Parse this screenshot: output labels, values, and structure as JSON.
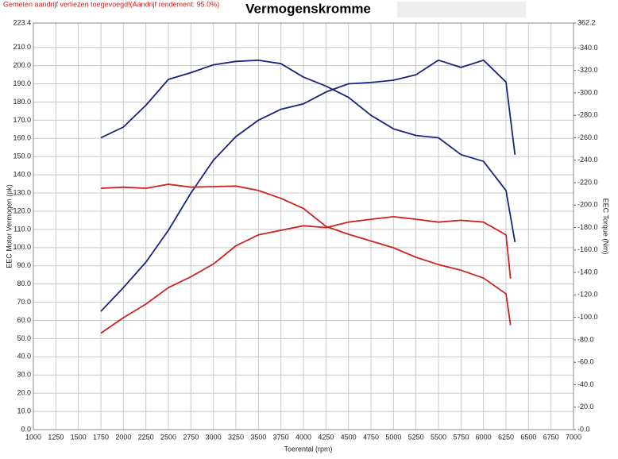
{
  "chart_data": {
    "type": "line",
    "title": "Vermogenskromme",
    "note": "Gemeten aandrijf verliezen toegevoegd!(Aandrijf rendement: 95.0%)",
    "xlabel": "Toerental (rpm)",
    "ylabel": "EEC Motor Vermogen (pk)",
    "y2label": "EEC Torque (Nm)",
    "xlim": [
      1000,
      7000
    ],
    "xticks": [
      1000,
      1250,
      1500,
      1750,
      2000,
      2250,
      2500,
      2750,
      3000,
      3250,
      3500,
      3750,
      4000,
      4250,
      4500,
      4750,
      5000,
      5250,
      5500,
      5750,
      6000,
      6250,
      6500,
      6750,
      7000
    ],
    "ylim": [
      0,
      223.4
    ],
    "yticks": [
      {
        "value": 0,
        "label": "0.0"
      },
      {
        "value": 10,
        "label": "10.0"
      },
      {
        "value": 20,
        "label": "20.0"
      },
      {
        "value": 30,
        "label": "30.0"
      },
      {
        "value": 40,
        "label": "40.0"
      },
      {
        "value": 50,
        "label": "50.0"
      },
      {
        "value": 60,
        "label": "60.0"
      },
      {
        "value": 70,
        "label": "70.0"
      },
      {
        "value": 80,
        "label": "80.0"
      },
      {
        "value": 90,
        "label": "90.0"
      },
      {
        "value": 100,
        "label": "100.0"
      },
      {
        "value": 110,
        "label": "110.0"
      },
      {
        "value": 120,
        "label": "120.0"
      },
      {
        "value": 130,
        "label": "130.0"
      },
      {
        "value": 140,
        "label": "140.0"
      },
      {
        "value": 150,
        "label": "150.0"
      },
      {
        "value": 160,
        "label": "160.0"
      },
      {
        "value": 170,
        "label": "170.0"
      },
      {
        "value": 180,
        "label": "180.0"
      },
      {
        "value": 190,
        "label": "190.0"
      },
      {
        "value": 200,
        "label": "200.0"
      },
      {
        "value": 210,
        "label": "210.0"
      },
      223.4
    ],
    "y2lim": [
      0,
      362.2
    ],
    "y2ticks": [
      {
        "value": 0,
        "label": "-0.0"
      },
      {
        "value": 20,
        "label": "-20.0"
      },
      {
        "value": 40,
        "label": "-40.0"
      },
      {
        "value": 60,
        "label": "-60.0"
      },
      {
        "value": 80,
        "label": "-80.0"
      },
      {
        "value": 100,
        "label": "-100.0"
      },
      {
        "value": 120,
        "label": "-120.0"
      },
      {
        "value": 140,
        "label": "-140.0"
      },
      {
        "value": 160,
        "label": "-160.0"
      },
      {
        "value": 180,
        "label": "-180.0"
      },
      {
        "value": 200,
        "label": "-200.0"
      },
      {
        "value": 220,
        "label": "-220.0"
      },
      {
        "value": 240,
        "label": "-240.0"
      },
      {
        "value": 260,
        "label": "-260.0"
      },
      {
        "value": 280,
        "label": "-280.0"
      },
      {
        "value": 300,
        "label": "-300.0"
      },
      {
        "value": 320,
        "label": "-320.0"
      },
      {
        "value": 340,
        "label": "-340.0"
      },
      362.2
    ],
    "grid": true,
    "series": [
      {
        "color": "#1a237e",
        "axis": "y2",
        "x": [
          1750,
          2000,
          2250,
          2500,
          2750,
          3000,
          3250,
          3500,
          3750,
          4000,
          4250,
          4500,
          4750,
          5000,
          5250,
          5500,
          5750,
          6000,
          6250,
          6350
        ],
        "values": [
          260,
          269.5,
          289,
          312,
          318,
          325,
          328,
          329,
          326,
          314,
          306,
          296,
          280,
          268,
          262,
          260,
          245,
          239,
          213,
          167
        ]
      },
      {
        "color": "#1a237e",
        "x": [
          1750,
          2000,
          2250,
          2500,
          2750,
          3000,
          3250,
          3500,
          3750,
          4000,
          4250,
          4500,
          4750,
          5000,
          5250,
          5500,
          5750,
          6000,
          6250,
          6350
        ],
        "values": [
          65,
          78,
          92,
          109.5,
          130,
          148,
          161,
          170,
          176,
          179,
          185.5,
          190,
          190.7,
          192,
          195,
          203,
          199,
          203,
          191,
          151
        ]
      },
      {
        "color": "#cc2222",
        "axis": "y2",
        "x": [
          1750,
          2000,
          2250,
          2500,
          2750,
          3000,
          3250,
          3500,
          3750,
          4000,
          4250,
          4500,
          4750,
          5000,
          5250,
          5500,
          5750,
          6000,
          6250,
          6300
        ],
        "values": [
          215,
          216,
          215,
          218.6,
          216,
          216.5,
          217,
          213,
          206,
          197,
          181,
          174,
          168,
          162,
          153.5,
          147,
          142,
          135,
          121,
          93
        ]
      },
      {
        "color": "#cc2222",
        "x": [
          1750,
          2000,
          2250,
          2500,
          2750,
          3000,
          3250,
          3500,
          3750,
          4000,
          4250,
          4500,
          4750,
          5000,
          5250,
          5500,
          5750,
          6000,
          6250,
          6300
        ],
        "values": [
          53,
          61.5,
          69,
          78,
          84,
          91,
          101,
          107,
          109.5,
          112,
          111,
          114,
          115.6,
          117,
          115.6,
          114,
          115,
          114,
          107,
          83
        ]
      }
    ]
  }
}
